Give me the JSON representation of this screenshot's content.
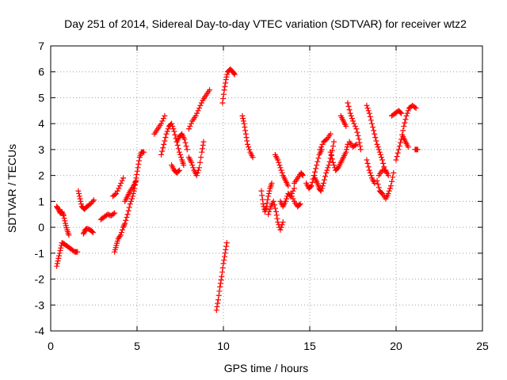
{
  "chart_data": {
    "type": "scatter",
    "title": "Day 251 of 2014, Sidereal Day-to-day VTEC variation (SDTVAR) for receiver wtz2",
    "xlabel": "GPS time / hours",
    "ylabel": "SDTVAR / TECUs",
    "xlim": [
      0,
      25
    ],
    "ylim": [
      -4,
      7
    ],
    "xticks": [
      0,
      5,
      10,
      15,
      20,
      25
    ],
    "yticks": [
      -4,
      -3,
      -2,
      -1,
      0,
      1,
      2,
      3,
      4,
      5,
      6,
      7
    ],
    "grid": true,
    "marker": "plus",
    "color": "#ff0000",
    "series": [
      {
        "segments": [
          [
            [
              0.35,
              -1.5
            ],
            [
              0.45,
              -1.2
            ],
            [
              0.55,
              -0.9
            ],
            [
              0.65,
              -0.6
            ],
            [
              0.8,
              -0.65
            ],
            [
              1.0,
              -0.75
            ],
            [
              1.2,
              -0.85
            ],
            [
              1.4,
              -0.95
            ],
            [
              1.55,
              -0.95
            ]
          ],
          [
            [
              0.35,
              0.8
            ],
            [
              0.45,
              0.7
            ],
            [
              0.55,
              0.55
            ],
            [
              0.65,
              0.6
            ],
            [
              0.75,
              0.45
            ],
            [
              0.85,
              0.15
            ],
            [
              0.95,
              -0.1
            ],
            [
              1.05,
              -0.3
            ]
          ],
          [
            [
              1.6,
              1.4
            ],
            [
              1.7,
              1.1
            ],
            [
              1.8,
              0.8
            ],
            [
              1.95,
              0.7
            ],
            [
              2.1,
              0.8
            ],
            [
              2.3,
              0.9
            ],
            [
              2.5,
              1.05
            ]
          ],
          [
            [
              1.9,
              -0.25
            ],
            [
              2.0,
              -0.1
            ],
            [
              2.1,
              -0.05
            ],
            [
              2.3,
              -0.1
            ],
            [
              2.45,
              -0.2
            ]
          ],
          [
            [
              2.9,
              0.3
            ],
            [
              3.1,
              0.4
            ],
            [
              3.3,
              0.5
            ],
            [
              3.5,
              0.45
            ],
            [
              3.7,
              0.55
            ]
          ],
          [
            [
              3.6,
              1.2
            ],
            [
              3.8,
              1.3
            ],
            [
              4.0,
              1.6
            ],
            [
              4.2,
              1.9
            ]
          ],
          [
            [
              3.7,
              -0.95
            ],
            [
              3.8,
              -0.7
            ],
            [
              3.9,
              -0.45
            ],
            [
              4.05,
              -0.3
            ],
            [
              4.2,
              0.0
            ],
            [
              4.3,
              0.15
            ],
            [
              4.45,
              0.5
            ],
            [
              4.6,
              0.9
            ],
            [
              4.75,
              1.2
            ],
            [
              4.85,
              1.5
            ],
            [
              4.95,
              1.9
            ],
            [
              5.05,
              2.3
            ],
            [
              5.15,
              2.7
            ],
            [
              5.25,
              2.9
            ],
            [
              5.4,
              2.9
            ]
          ],
          [
            [
              4.3,
              1.0
            ],
            [
              4.45,
              1.2
            ],
            [
              4.6,
              1.4
            ],
            [
              4.8,
              1.6
            ],
            [
              4.95,
              1.8
            ]
          ],
          [
            [
              6.0,
              3.6
            ],
            [
              6.2,
              3.8
            ],
            [
              6.4,
              4.0
            ],
            [
              6.6,
              4.3
            ]
          ],
          [
            [
              6.4,
              2.8
            ],
            [
              6.55,
              3.2
            ],
            [
              6.7,
              3.6
            ],
            [
              6.85,
              3.9
            ],
            [
              7.0,
              4.0
            ],
            [
              7.15,
              3.7
            ],
            [
              7.3,
              3.3
            ],
            [
              7.45,
              2.9
            ],
            [
              7.6,
              2.6
            ],
            [
              7.7,
              2.4
            ]
          ],
          [
            [
              7.0,
              2.4
            ],
            [
              7.15,
              2.2
            ],
            [
              7.3,
              2.1
            ],
            [
              7.45,
              2.2
            ]
          ],
          [
            [
              7.3,
              3.3
            ],
            [
              7.45,
              3.5
            ],
            [
              7.6,
              3.6
            ],
            [
              7.75,
              3.4
            ],
            [
              7.9,
              3.0
            ]
          ],
          [
            [
              8.0,
              2.7
            ],
            [
              8.15,
              2.5
            ],
            [
              8.3,
              2.2
            ],
            [
              8.45,
              2.0
            ],
            [
              8.6,
              2.3
            ],
            [
              8.75,
              2.9
            ],
            [
              8.85,
              3.3
            ]
          ],
          [
            [
              8.0,
              3.8
            ],
            [
              8.2,
              4.1
            ],
            [
              8.4,
              4.3
            ],
            [
              8.6,
              4.6
            ],
            [
              8.8,
              4.9
            ],
            [
              9.0,
              5.1
            ],
            [
              9.2,
              5.3
            ]
          ],
          [
            [
              9.6,
              -3.2
            ],
            [
              9.7,
              -2.8
            ],
            [
              9.8,
              -2.3
            ],
            [
              9.9,
              -1.9
            ],
            [
              10.0,
              -1.4
            ],
            [
              10.1,
              -1.0
            ],
            [
              10.2,
              -0.6
            ]
          ],
          [
            [
              9.95,
              4.8
            ],
            [
              10.05,
              5.3
            ],
            [
              10.15,
              5.7
            ],
            [
              10.25,
              6.0
            ],
            [
              10.4,
              6.1
            ],
            [
              10.55,
              6.0
            ],
            [
              10.65,
              5.9
            ]
          ],
          [
            [
              11.1,
              4.3
            ],
            [
              11.2,
              4.0
            ],
            [
              11.3,
              3.6
            ],
            [
              11.4,
              3.2
            ],
            [
              11.55,
              2.9
            ],
            [
              11.7,
              2.7
            ]
          ],
          [
            [
              12.2,
              1.4
            ],
            [
              12.3,
              0.9
            ],
            [
              12.4,
              0.6
            ],
            [
              12.5,
              0.8
            ],
            [
              12.6,
              1.2
            ],
            [
              12.7,
              1.5
            ],
            [
              12.8,
              1.7
            ]
          ],
          [
            [
              12.6,
              0.5
            ],
            [
              12.75,
              0.8
            ],
            [
              12.9,
              1.0
            ],
            [
              13.05,
              0.6
            ],
            [
              13.15,
              0.2
            ],
            [
              13.3,
              -0.1
            ],
            [
              13.45,
              0.2
            ]
          ],
          [
            [
              13.3,
              1.0
            ],
            [
              13.45,
              0.8
            ],
            [
              13.6,
              1.0
            ],
            [
              13.75,
              1.3
            ],
            [
              13.9,
              1.2
            ],
            [
              14.1,
              1.5
            ]
          ],
          [
            [
              13.0,
              2.8
            ],
            [
              13.15,
              2.6
            ],
            [
              13.3,
              2.3
            ],
            [
              13.45,
              2.0
            ],
            [
              13.6,
              1.8
            ],
            [
              13.75,
              1.6
            ]
          ],
          [
            [
              14.1,
              1.7
            ],
            [
              14.3,
              1.9
            ],
            [
              14.5,
              2.1
            ],
            [
              14.6,
              2.0
            ]
          ],
          [
            [
              13.9,
              1.3
            ],
            [
              14.1,
              1.0
            ],
            [
              14.3,
              0.8
            ],
            [
              14.45,
              0.9
            ]
          ],
          [
            [
              14.8,
              1.7
            ],
            [
              14.95,
              1.5
            ],
            [
              15.1,
              1.6
            ],
            [
              15.25,
              2.0
            ],
            [
              15.4,
              2.4
            ],
            [
              15.55,
              2.8
            ],
            [
              15.7,
              3.0
            ]
          ],
          [
            [
              15.3,
              1.9
            ],
            [
              15.45,
              1.7
            ],
            [
              15.55,
              1.5
            ],
            [
              15.65,
              1.4
            ],
            [
              15.8,
              1.7
            ],
            [
              15.95,
              2.1
            ],
            [
              16.1,
              2.4
            ],
            [
              16.25,
              2.8
            ],
            [
              16.4,
              3.3
            ]
          ],
          [
            [
              15.6,
              3.0
            ],
            [
              15.8,
              3.3
            ],
            [
              16.0,
              3.4
            ],
            [
              16.2,
              3.6
            ]
          ],
          [
            [
              16.2,
              2.9
            ],
            [
              16.35,
              2.5
            ],
            [
              16.5,
              2.2
            ],
            [
              16.65,
              2.3
            ],
            [
              16.8,
              2.5
            ],
            [
              16.95,
              2.7
            ],
            [
              17.1,
              2.9
            ],
            [
              17.2,
              3.2
            ]
          ],
          [
            [
              17.2,
              4.8
            ],
            [
              17.35,
              4.4
            ],
            [
              17.5,
              4.1
            ],
            [
              17.7,
              3.8
            ],
            [
              17.85,
              3.4
            ],
            [
              17.95,
              3.0
            ]
          ],
          [
            [
              16.8,
              4.3
            ],
            [
              16.95,
              4.1
            ],
            [
              17.1,
              3.9
            ]
          ],
          [
            [
              17.3,
              3.3
            ],
            [
              17.5,
              3.1
            ],
            [
              17.7,
              3.2
            ]
          ],
          [
            [
              18.3,
              2.6
            ],
            [
              18.45,
              2.2
            ],
            [
              18.6,
              1.9
            ],
            [
              18.75,
              1.7
            ]
          ],
          [
            [
              18.3,
              4.7
            ],
            [
              18.45,
              4.4
            ],
            [
              18.6,
              4.0
            ],
            [
              18.75,
              3.6
            ],
            [
              18.9,
              3.2
            ],
            [
              19.05,
              2.9
            ],
            [
              19.2,
              2.6
            ],
            [
              19.35,
              2.2
            ]
          ],
          [
            [
              19.0,
              2.0
            ],
            [
              19.2,
              2.2
            ],
            [
              19.4,
              2.2
            ],
            [
              19.55,
              2.0
            ]
          ],
          [
            [
              18.9,
              1.8
            ],
            [
              19.05,
              1.4
            ],
            [
              19.2,
              1.3
            ],
            [
              19.4,
              1.1
            ],
            [
              19.55,
              1.3
            ],
            [
              19.7,
              1.6
            ],
            [
              19.85,
              2.1
            ]
          ],
          [
            [
              19.75,
              4.3
            ],
            [
              19.95,
              4.4
            ],
            [
              20.15,
              4.5
            ],
            [
              20.3,
              4.4
            ]
          ],
          [
            [
              20.0,
              2.6
            ],
            [
              20.15,
              3.0
            ],
            [
              20.3,
              3.4
            ],
            [
              20.45,
              3.9
            ],
            [
              20.6,
              4.3
            ],
            [
              20.75,
              4.6
            ],
            [
              20.95,
              4.7
            ],
            [
              21.15,
              4.6
            ]
          ],
          [
            [
              20.4,
              3.5
            ],
            [
              20.55,
              3.3
            ],
            [
              20.7,
              3.1
            ]
          ],
          [
            [
              21.1,
              3.0
            ],
            [
              21.25,
              3.0
            ]
          ]
        ]
      }
    ]
  }
}
